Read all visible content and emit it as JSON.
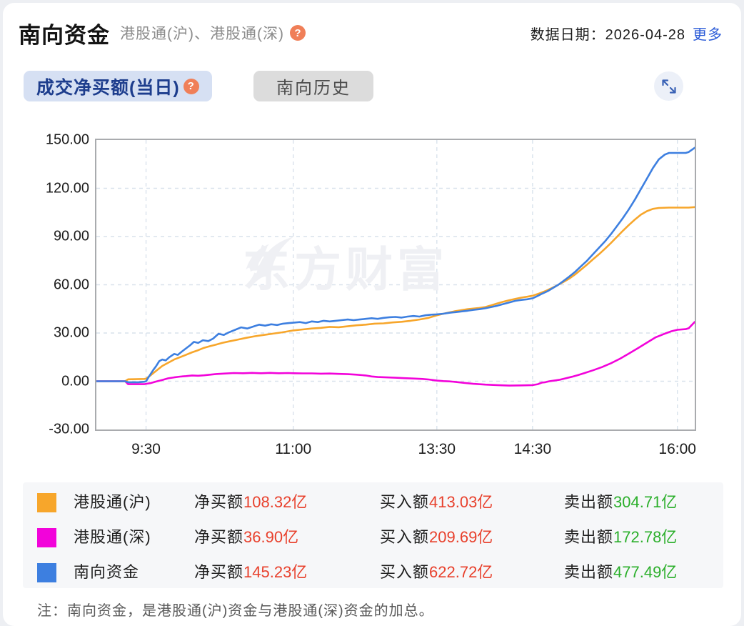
{
  "header": {
    "title": "南向资金",
    "subtitle": "港股通(沪)、港股通(深)",
    "help_glyph": "?",
    "date_label": "数据日期：2026-04-28",
    "more_link": "更多"
  },
  "tabs": [
    {
      "label": "成交净买额(当日)",
      "active": true,
      "help_glyph": "?"
    },
    {
      "label": "南向历史",
      "active": false
    }
  ],
  "chart_data": {
    "type": "line",
    "ylim": [
      -30,
      150
    ],
    "y_ticks": [
      {
        "value": 150,
        "label": "150.00"
      },
      {
        "value": 120,
        "label": "120.00"
      },
      {
        "value": 90,
        "label": "90.00"
      },
      {
        "value": 60,
        "label": "60.00"
      },
      {
        "value": 30,
        "label": "30.00"
      },
      {
        "value": 0,
        "label": "0.00"
      },
      {
        "value": -30,
        "label": "-30.00"
      }
    ],
    "x_ticks": [
      {
        "f": 0.083,
        "label": "9:30"
      },
      {
        "f": 0.329,
        "label": "11:00"
      },
      {
        "f": 0.569,
        "label": "13:30"
      },
      {
        "f": 0.729,
        "label": "14:30"
      },
      {
        "f": 0.971,
        "label": "16:00"
      }
    ],
    "grid": true,
    "grid_color": "#d9e2ec",
    "watermark": "东方财富",
    "legend_position": "bottom",
    "series": [
      {
        "name": "港股通(沪)",
        "color": "#f7a62b",
        "points": [
          [
            0,
            0
          ],
          [
            0.048,
            0
          ],
          [
            0.053,
            1.2
          ],
          [
            0.08,
            1.4
          ],
          [
            0.083,
            1.6
          ],
          [
            0.09,
            3.5
          ],
          [
            0.1,
            6.5
          ],
          [
            0.11,
            9.5
          ],
          [
            0.12,
            11.5
          ],
          [
            0.13,
            13.5
          ],
          [
            0.14,
            15
          ],
          [
            0.15,
            16.5
          ],
          [
            0.16,
            18
          ],
          [
            0.17,
            19.3
          ],
          [
            0.18,
            20.8
          ],
          [
            0.19,
            21.8
          ],
          [
            0.2,
            22.8
          ],
          [
            0.21,
            23.8
          ],
          [
            0.222,
            24.8
          ],
          [
            0.235,
            25.8
          ],
          [
            0.25,
            27
          ],
          [
            0.265,
            28
          ],
          [
            0.28,
            28.8
          ],
          [
            0.295,
            29.6
          ],
          [
            0.31,
            30.4
          ],
          [
            0.329,
            31.6
          ],
          [
            0.345,
            32.2
          ],
          [
            0.36,
            32.8
          ],
          [
            0.375,
            33.2
          ],
          [
            0.39,
            33.8
          ],
          [
            0.405,
            33.6
          ],
          [
            0.42,
            34.2
          ],
          [
            0.435,
            34.8
          ],
          [
            0.45,
            35.2
          ],
          [
            0.465,
            35.8
          ],
          [
            0.48,
            36
          ],
          [
            0.495,
            36.6
          ],
          [
            0.51,
            37
          ],
          [
            0.525,
            37.6
          ],
          [
            0.54,
            38.4
          ],
          [
            0.555,
            39.4
          ],
          [
            0.569,
            41
          ],
          [
            0.58,
            42
          ],
          [
            0.59,
            42.8
          ],
          [
            0.6,
            43.6
          ],
          [
            0.61,
            44.2
          ],
          [
            0.62,
            44.8
          ],
          [
            0.63,
            45.2
          ],
          [
            0.64,
            45.6
          ],
          [
            0.65,
            46.2
          ],
          [
            0.66,
            47.2
          ],
          [
            0.67,
            48.4
          ],
          [
            0.68,
            49.4
          ],
          [
            0.69,
            50.4
          ],
          [
            0.7,
            51.2
          ],
          [
            0.71,
            52
          ],
          [
            0.72,
            52.6
          ],
          [
            0.729,
            53.2
          ],
          [
            0.74,
            54.6
          ],
          [
            0.75,
            56
          ],
          [
            0.76,
            57.8
          ],
          [
            0.77,
            59.6
          ],
          [
            0.78,
            61.6
          ],
          [
            0.79,
            63.8
          ],
          [
            0.8,
            66.4
          ],
          [
            0.81,
            69.4
          ],
          [
            0.82,
            72.6
          ],
          [
            0.83,
            75.8
          ],
          [
            0.84,
            79
          ],
          [
            0.85,
            82.4
          ],
          [
            0.86,
            86
          ],
          [
            0.87,
            89.8
          ],
          [
            0.88,
            93.6
          ],
          [
            0.89,
            97.2
          ],
          [
            0.9,
            100.6
          ],
          [
            0.91,
            103.6
          ],
          [
            0.92,
            105.8
          ],
          [
            0.93,
            107.2
          ],
          [
            0.94,
            107.8
          ],
          [
            0.957,
            108
          ],
          [
            0.99,
            108
          ],
          [
            1,
            108.3
          ]
        ]
      },
      {
        "name": "港股通(深)",
        "color": "#f203da",
        "points": [
          [
            0,
            0
          ],
          [
            0.048,
            0
          ],
          [
            0.053,
            -1.8
          ],
          [
            0.08,
            -1.8
          ],
          [
            0.083,
            -1.6
          ],
          [
            0.09,
            -1.2
          ],
          [
            0.1,
            -0.2
          ],
          [
            0.11,
            0.8
          ],
          [
            0.12,
            1.8
          ],
          [
            0.13,
            2.4
          ],
          [
            0.14,
            2.9
          ],
          [
            0.15,
            3.2
          ],
          [
            0.16,
            3.6
          ],
          [
            0.17,
            3.4
          ],
          [
            0.18,
            3.7
          ],
          [
            0.19,
            4.1
          ],
          [
            0.2,
            4.5
          ],
          [
            0.215,
            4.8
          ],
          [
            0.23,
            5.1
          ],
          [
            0.245,
            5
          ],
          [
            0.26,
            5.2
          ],
          [
            0.275,
            5
          ],
          [
            0.29,
            5.2
          ],
          [
            0.305,
            5
          ],
          [
            0.32,
            5.1
          ],
          [
            0.33,
            5
          ],
          [
            0.345,
            4.9
          ],
          [
            0.36,
            4.9
          ],
          [
            0.375,
            4.7
          ],
          [
            0.39,
            4.8
          ],
          [
            0.405,
            4.6
          ],
          [
            0.42,
            4.4
          ],
          [
            0.435,
            4.1
          ],
          [
            0.45,
            3.6
          ],
          [
            0.46,
            3
          ],
          [
            0.47,
            2.6
          ],
          [
            0.485,
            2.4
          ],
          [
            0.5,
            2.2
          ],
          [
            0.515,
            1.9
          ],
          [
            0.53,
            1.7
          ],
          [
            0.545,
            1.4
          ],
          [
            0.555,
            1.1
          ],
          [
            0.569,
            0.4
          ],
          [
            0.58,
            0.1
          ],
          [
            0.59,
            -0.1
          ],
          [
            0.6,
            -0.4
          ],
          [
            0.615,
            -1
          ],
          [
            0.63,
            -1.6
          ],
          [
            0.65,
            -2.1
          ],
          [
            0.67,
            -2.4
          ],
          [
            0.69,
            -2.7
          ],
          [
            0.71,
            -2.6
          ],
          [
            0.729,
            -2.4
          ],
          [
            0.738,
            -1.8
          ],
          [
            0.744,
            -0.9
          ],
          [
            0.75,
            -0.6
          ],
          [
            0.757,
            0
          ],
          [
            0.765,
            0.4
          ],
          [
            0.775,
            1
          ],
          [
            0.785,
            1.9
          ],
          [
            0.795,
            2.8
          ],
          [
            0.805,
            3.8
          ],
          [
            0.815,
            5
          ],
          [
            0.83,
            6.8
          ],
          [
            0.845,
            8.8
          ],
          [
            0.86,
            11.2
          ],
          [
            0.875,
            14
          ],
          [
            0.89,
            17.2
          ],
          [
            0.905,
            20.6
          ],
          [
            0.92,
            24
          ],
          [
            0.935,
            27.4
          ],
          [
            0.95,
            29.6
          ],
          [
            0.96,
            31
          ],
          [
            0.971,
            32
          ],
          [
            0.985,
            32.4
          ],
          [
            0.99,
            33
          ],
          [
            1,
            36.9
          ]
        ]
      },
      {
        "name": "南向资金",
        "color": "#3d7fe0",
        "points": [
          [
            0,
            0
          ],
          [
            0.048,
            0
          ],
          [
            0.053,
            -0.6
          ],
          [
            0.07,
            -0.6
          ],
          [
            0.08,
            -0.3
          ],
          [
            0.083,
            0
          ],
          [
            0.088,
            3
          ],
          [
            0.095,
            7
          ],
          [
            0.1,
            9.5
          ],
          [
            0.105,
            12.5
          ],
          [
            0.11,
            13.5
          ],
          [
            0.116,
            13
          ],
          [
            0.122,
            15
          ],
          [
            0.13,
            17
          ],
          [
            0.136,
            16.4
          ],
          [
            0.143,
            18.5
          ],
          [
            0.15,
            20.5
          ],
          [
            0.157,
            22.5
          ],
          [
            0.163,
            24.5
          ],
          [
            0.17,
            23.8
          ],
          [
            0.178,
            25.5
          ],
          [
            0.187,
            25
          ],
          [
            0.195,
            26.5
          ],
          [
            0.204,
            29.5
          ],
          [
            0.213,
            28.8
          ],
          [
            0.222,
            30.5
          ],
          [
            0.232,
            32
          ],
          [
            0.242,
            33.5
          ],
          [
            0.252,
            32.8
          ],
          [
            0.262,
            34
          ],
          [
            0.272,
            35.2
          ],
          [
            0.282,
            34.6
          ],
          [
            0.292,
            35.4
          ],
          [
            0.302,
            35
          ],
          [
            0.312,
            35.8
          ],
          [
            0.322,
            36.2
          ],
          [
            0.329,
            36.4
          ],
          [
            0.34,
            36.8
          ],
          [
            0.35,
            36.2
          ],
          [
            0.36,
            37.2
          ],
          [
            0.37,
            36.8
          ],
          [
            0.38,
            37.6
          ],
          [
            0.39,
            37.2
          ],
          [
            0.4,
            37.6
          ],
          [
            0.41,
            38
          ],
          [
            0.42,
            38.4
          ],
          [
            0.43,
            38
          ],
          [
            0.44,
            38.4
          ],
          [
            0.45,
            38.8
          ],
          [
            0.46,
            39.2
          ],
          [
            0.47,
            38.8
          ],
          [
            0.48,
            39.4
          ],
          [
            0.49,
            39.8
          ],
          [
            0.5,
            40
          ],
          [
            0.51,
            39.6
          ],
          [
            0.52,
            40.2
          ],
          [
            0.53,
            40.6
          ],
          [
            0.54,
            40.2
          ],
          [
            0.55,
            41
          ],
          [
            0.56,
            41.4
          ],
          [
            0.569,
            41.6
          ],
          [
            0.58,
            42
          ],
          [
            0.59,
            42.6
          ],
          [
            0.6,
            43
          ],
          [
            0.61,
            43.4
          ],
          [
            0.62,
            43.8
          ],
          [
            0.63,
            44.4
          ],
          [
            0.64,
            44.8
          ],
          [
            0.65,
            45.4
          ],
          [
            0.66,
            46.2
          ],
          [
            0.67,
            47
          ],
          [
            0.68,
            48
          ],
          [
            0.69,
            49
          ],
          [
            0.7,
            50
          ],
          [
            0.71,
            50.6
          ],
          [
            0.72,
            51
          ],
          [
            0.729,
            51.6
          ],
          [
            0.737,
            53
          ],
          [
            0.745,
            54.5
          ],
          [
            0.754,
            56
          ],
          [
            0.763,
            58
          ],
          [
            0.772,
            60
          ],
          [
            0.781,
            62.5
          ],
          [
            0.79,
            65
          ],
          [
            0.8,
            68
          ],
          [
            0.81,
            71.5
          ],
          [
            0.82,
            75
          ],
          [
            0.83,
            79
          ],
          [
            0.84,
            83
          ],
          [
            0.85,
            87
          ],
          [
            0.86,
            91.5
          ],
          [
            0.87,
            96.5
          ],
          [
            0.88,
            101.5
          ],
          [
            0.89,
            107
          ],
          [
            0.9,
            113
          ],
          [
            0.91,
            119.5
          ],
          [
            0.92,
            126
          ],
          [
            0.93,
            132.5
          ],
          [
            0.94,
            138
          ],
          [
            0.95,
            141
          ],
          [
            0.957,
            142
          ],
          [
            0.985,
            142
          ],
          [
            0.99,
            142.6
          ],
          [
            1,
            145.2
          ]
        ]
      }
    ]
  },
  "legend": {
    "value_colors": {
      "red": "#e8402c",
      "green": "#2baf2b"
    },
    "rows": [
      {
        "name": "港股通(沪)",
        "color": "#f7a62b",
        "net_label": "净买额",
        "net_value": "108.32亿",
        "buy_label": "买入额",
        "buy_value": "413.03亿",
        "sell_label": "卖出额",
        "sell_value": "304.71亿"
      },
      {
        "name": "港股通(深)",
        "color": "#f203da",
        "net_label": "净买额",
        "net_value": "36.90亿",
        "buy_label": "买入额",
        "buy_value": "209.69亿",
        "sell_label": "卖出额",
        "sell_value": "172.78亿"
      },
      {
        "name": "南向资金",
        "color": "#3d7fe0",
        "net_label": "净买额",
        "net_value": "145.23亿",
        "buy_label": "买入额",
        "buy_value": "622.72亿",
        "sell_label": "卖出额",
        "sell_value": "477.49亿"
      }
    ]
  },
  "note": "注：南向资金，是港股通(沪)资金与港股通(深)资金的加总。"
}
